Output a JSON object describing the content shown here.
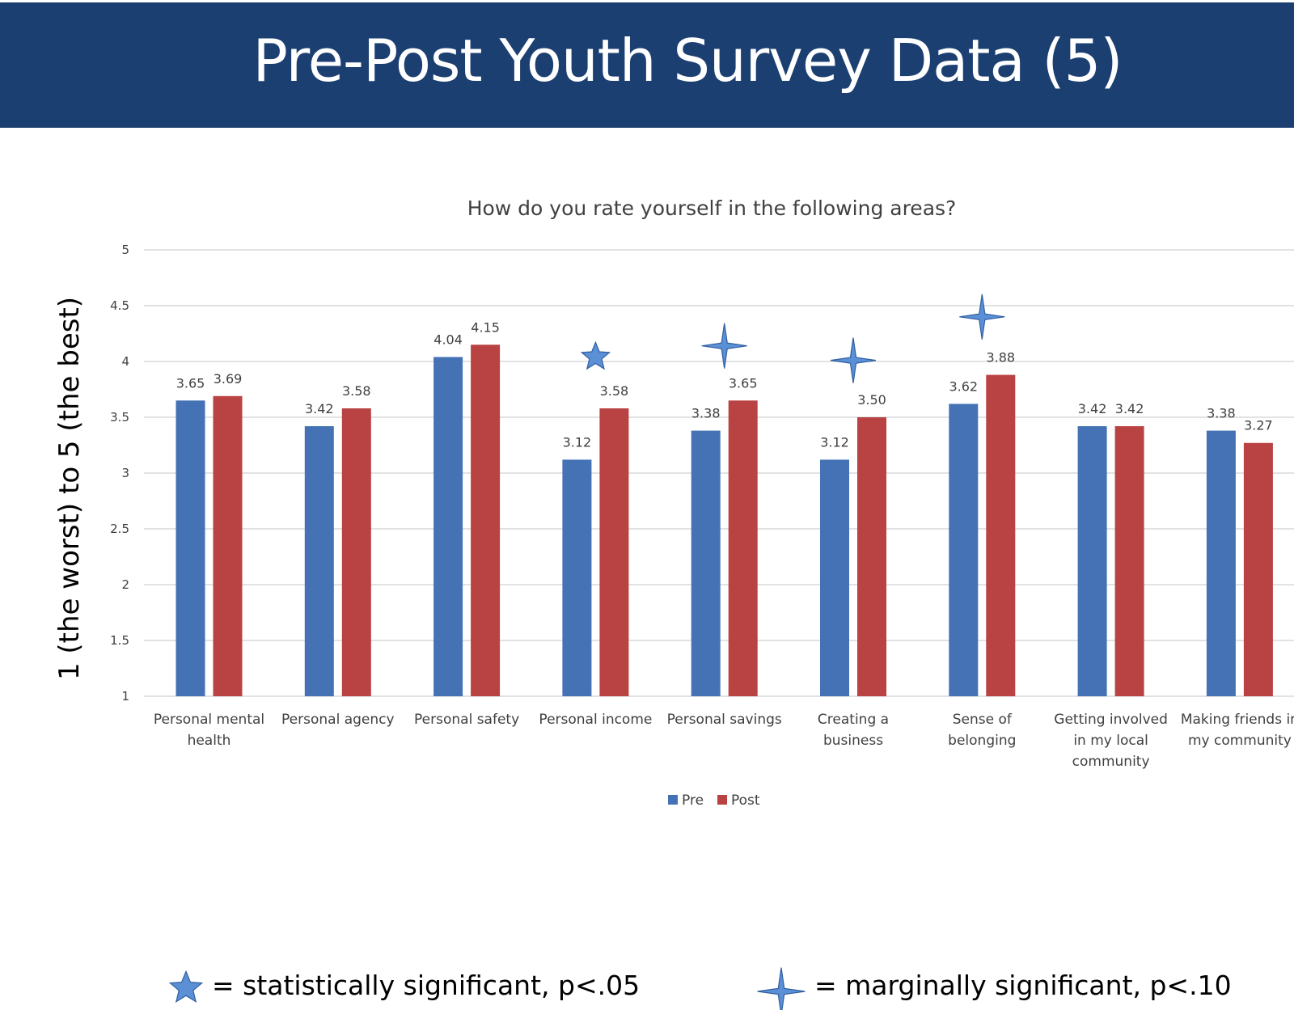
{
  "slide": {
    "title": "Pre-Post Youth Survey Data (5)",
    "header_color": "#1c3f72",
    "title_color": "#ffffff"
  },
  "chart_data": {
    "type": "bar",
    "title": "How do you rate yourself in the following areas?",
    "ylabel": "1 (the worst) to 5 (the best)",
    "xlabel": "",
    "ylim": [
      1,
      5
    ],
    "yticks": [
      "1",
      "1.5",
      "2",
      "2.5",
      "3",
      "3.5",
      "4",
      "4.5",
      "5"
    ],
    "grid": true,
    "legend_position": "bottom",
    "categories": [
      [
        "Personal mental",
        "health"
      ],
      [
        "Personal agency"
      ],
      [
        "Personal safety"
      ],
      [
        "Personal income"
      ],
      [
        "Personal savings"
      ],
      [
        "Creating a",
        "business"
      ],
      [
        "Sense of",
        "belonging"
      ],
      [
        "Getting involved",
        "in my local",
        "community"
      ],
      [
        "Making friends in",
        "my community"
      ]
    ],
    "series": [
      {
        "name": "Pre",
        "color": "#4472b5",
        "values": [
          3.65,
          3.42,
          4.04,
          3.12,
          3.38,
          3.12,
          3.62,
          3.42,
          3.38
        ],
        "labels": [
          "3.65",
          "3.42",
          "4.04",
          "3.12",
          "3.38",
          "3.12",
          "3.62",
          "3.42",
          "3.38"
        ]
      },
      {
        "name": "Post",
        "color": "#b94242",
        "values": [
          3.69,
          3.58,
          4.15,
          3.58,
          3.65,
          3.5,
          3.88,
          3.42,
          3.27
        ],
        "labels": [
          "3.69",
          "3.58",
          "4.15",
          "3.58",
          "3.65",
          "3.50",
          "3.88",
          "3.42",
          "3.27"
        ]
      }
    ],
    "significance_markers": [
      {
        "category_index": 3,
        "type": "star",
        "icon": "five-point-star-icon",
        "level": 4.04
      },
      {
        "category_index": 4,
        "type": "sparkle",
        "icon": "four-point-star-icon",
        "level": 4.14
      },
      {
        "category_index": 5,
        "type": "sparkle",
        "icon": "four-point-star-icon",
        "level": 4.01
      },
      {
        "category_index": 6,
        "type": "sparkle",
        "icon": "four-point-star-icon",
        "level": 4.4
      }
    ],
    "marker_color": "#5b8fd6",
    "marker_stroke": "#2f5fa0"
  },
  "footer": {
    "significant_text": "= statistically significant, p<.05",
    "significant_icon": "five-point-star-icon",
    "marginal_text": "= marginally significant, p<.10",
    "marginal_icon": "four-point-star-icon"
  }
}
